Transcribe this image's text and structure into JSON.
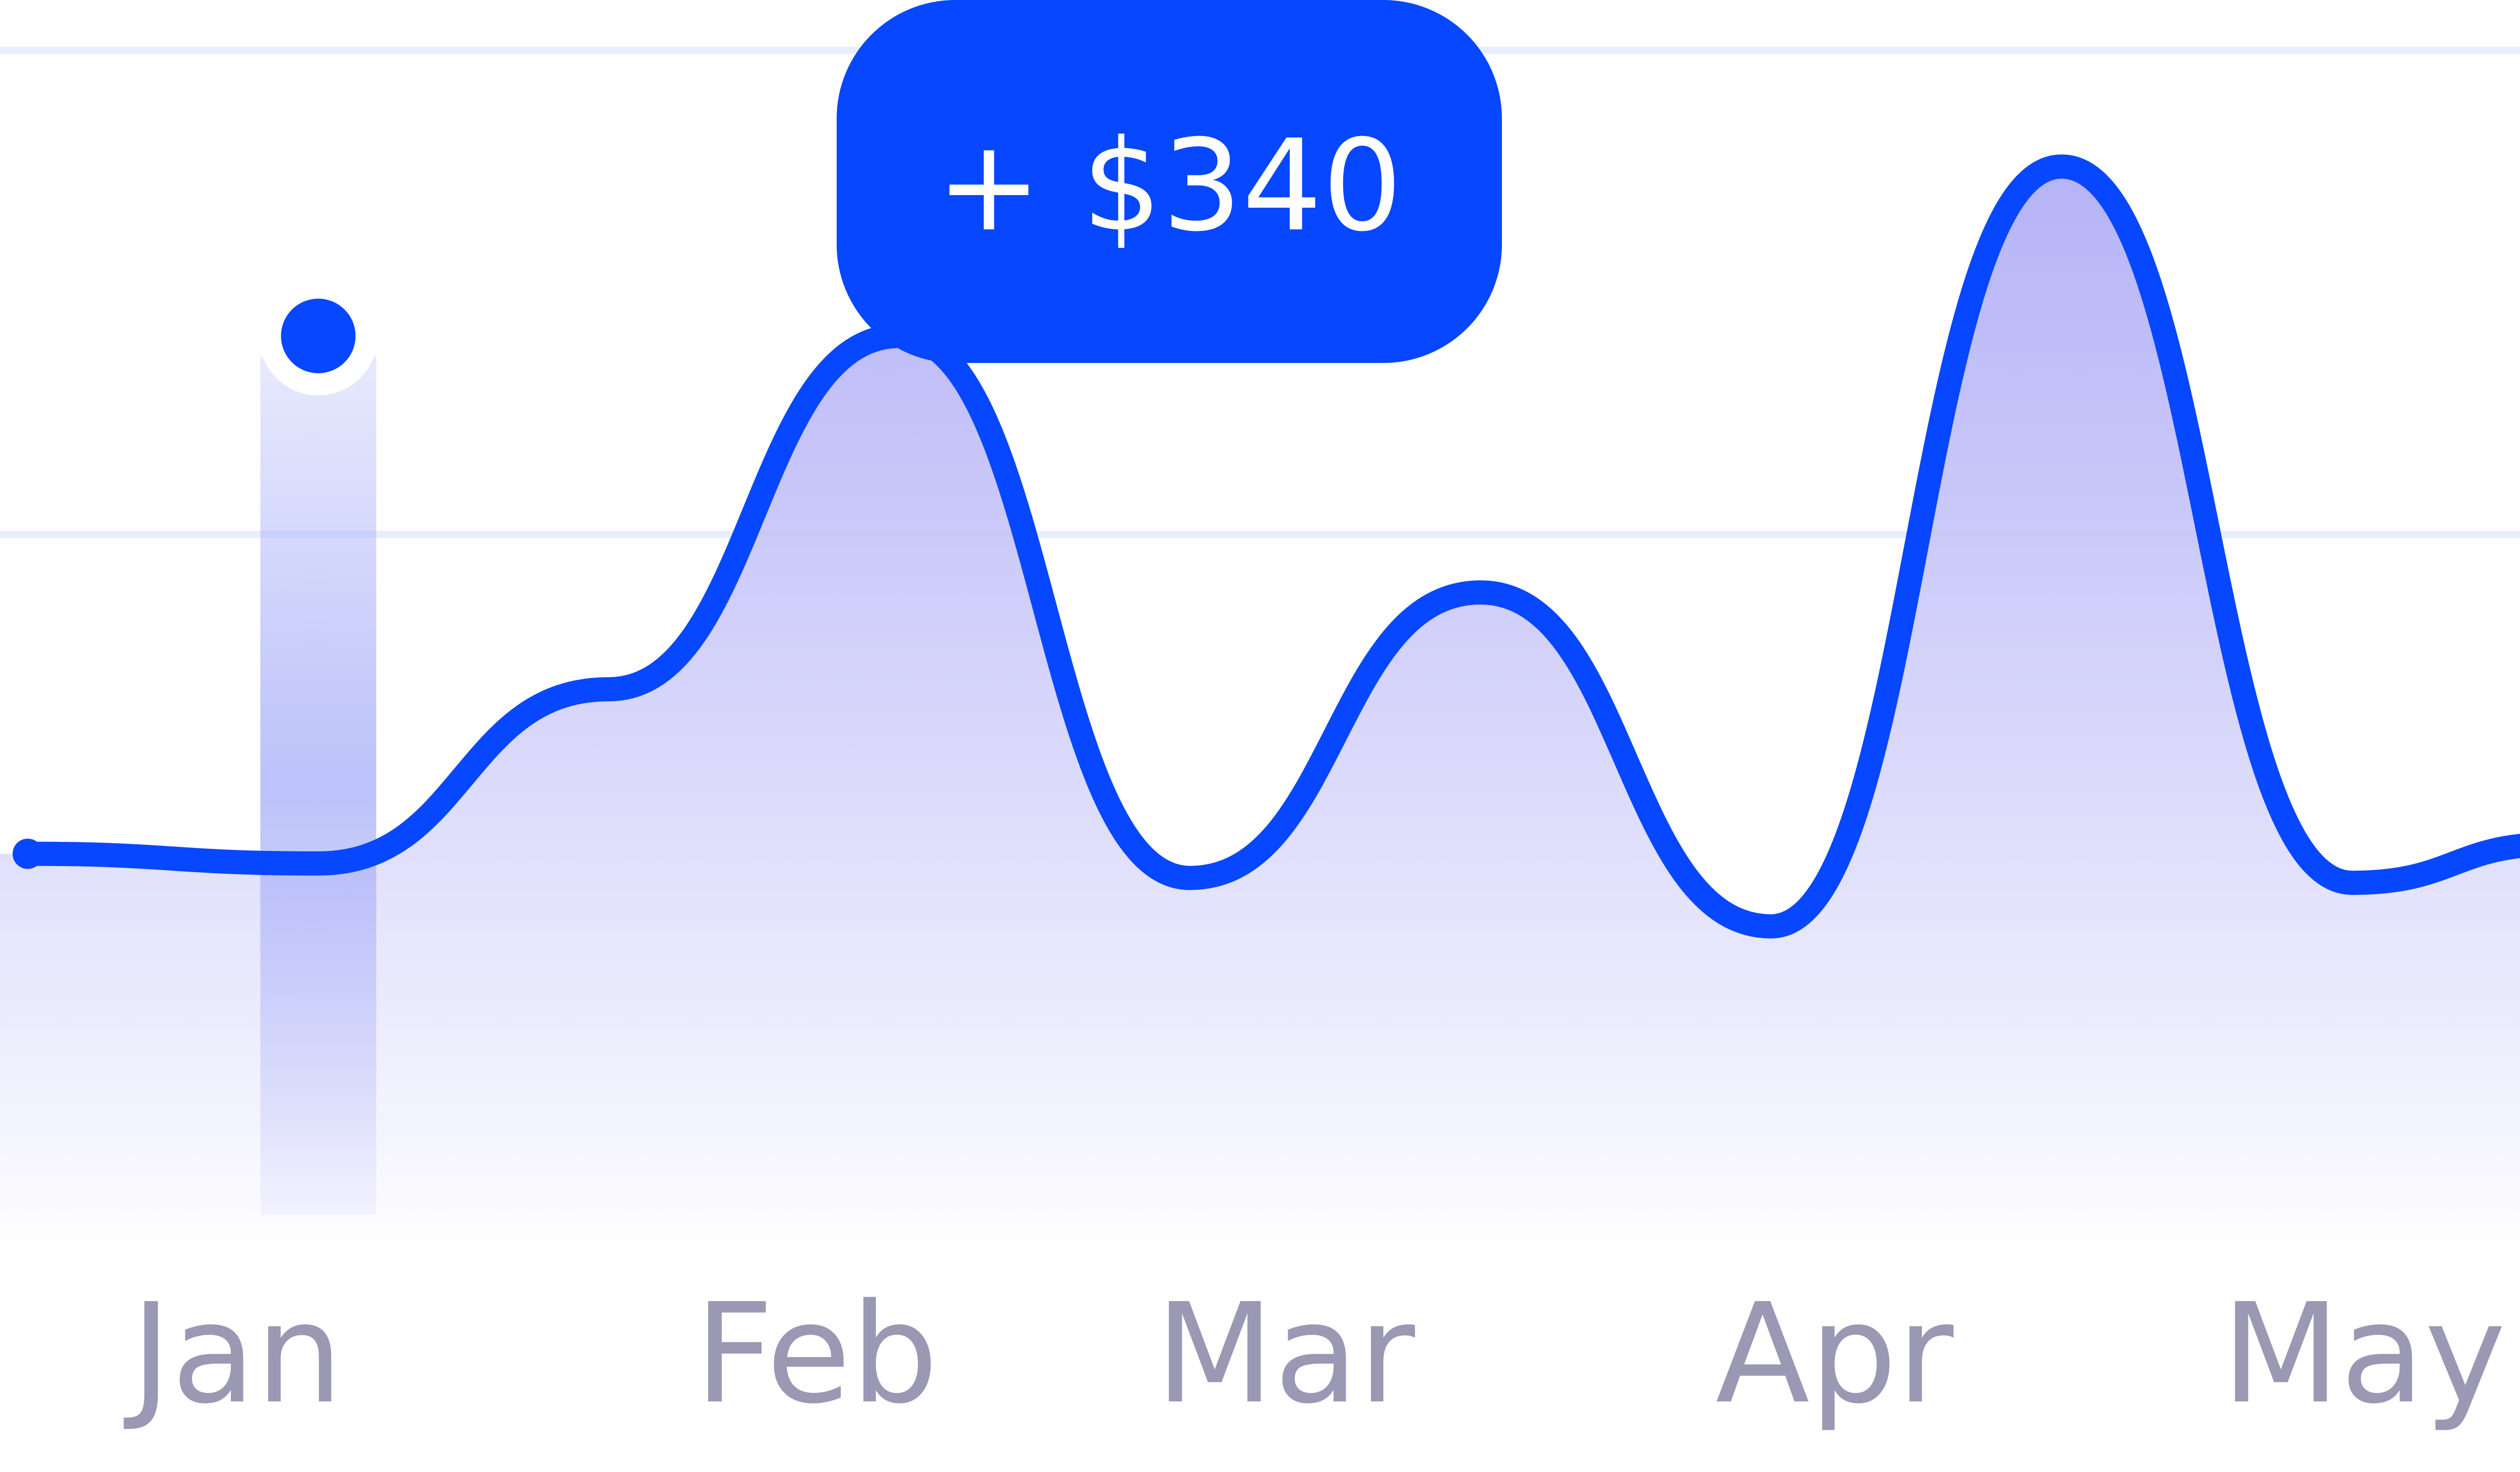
{
  "colors": {
    "line": "#0647ff",
    "tooltip_bg": "#0647ff",
    "tooltip_text": "#ffffff",
    "area_top": "#a9a6f5",
    "area_bottom": "#ffffff",
    "grid": "#e8eefc",
    "axis_label": "#9b98b4",
    "highlight_band": "#9fa7f7"
  },
  "tooltip": {
    "text": "+ $340"
  },
  "chart_data": {
    "type": "area",
    "x_labels": [
      "Jan",
      "Feb",
      "Mar",
      "Apr",
      "May"
    ],
    "series": [
      {
        "points": [
          {
            "x": 0.0,
            "y": 0.84
          },
          {
            "x": 0.5,
            "y": 0.82
          },
          {
            "x": 1.0,
            "y": 1.18
          },
          {
            "x": 1.5,
            "y": 1.91
          },
          {
            "x": 2.0,
            "y": 0.79
          },
          {
            "x": 2.5,
            "y": 1.38
          },
          {
            "x": 3.0,
            "y": 0.69
          },
          {
            "x": 3.5,
            "y": 2.26
          },
          {
            "x": 4.0,
            "y": 0.78
          },
          {
            "x": 4.35,
            "y": 0.86
          }
        ]
      }
    ],
    "highlight": {
      "x": 0.5,
      "y": 1.91,
      "label": "+ $340"
    },
    "y_gridlines": [
      0.5,
      1.5,
      2.5
    ],
    "ylim": [
      0,
      2.7
    ],
    "grid": true,
    "legend": "none"
  }
}
